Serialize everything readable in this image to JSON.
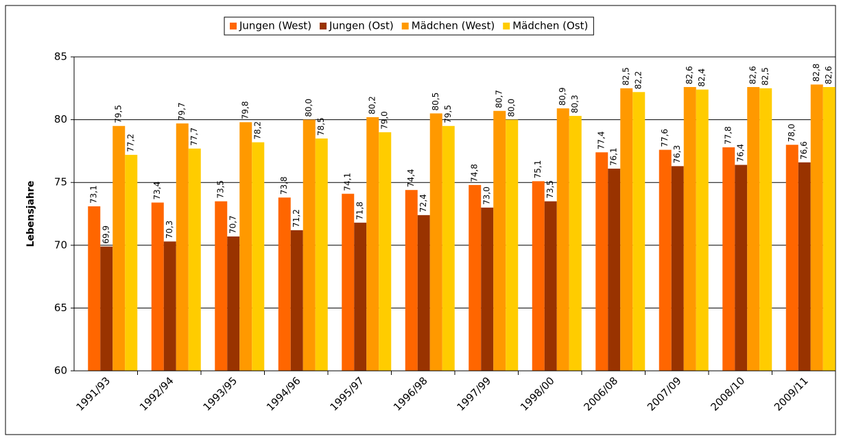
{
  "chart_data": {
    "type": "bar",
    "y_label": "Lebensjahre",
    "categories": [
      "1991/93",
      "1992/94",
      "1993/95",
      "1994/96",
      "1995/97",
      "1996/98",
      "1997/99",
      "1998/00",
      "2006/08",
      "2007/09",
      "2008/10",
      "2009/11"
    ],
    "series": [
      {
        "name": "Jungen (West)",
        "color": "#ff6600",
        "values": [
          73.1,
          73.4,
          73.5,
          73.8,
          74.1,
          74.4,
          74.8,
          75.1,
          77.4,
          77.6,
          77.8,
          78.0
        ],
        "value_labels": [
          "73,1",
          "73,4",
          "73,5",
          "73,8",
          "74,1",
          "74,4",
          "74,8",
          "75,1",
          "77,4",
          "77,6",
          "77,8",
          "78,0"
        ]
      },
      {
        "name": "Jungen (Ost)",
        "color": "#993300",
        "values": [
          69.9,
          70.3,
          70.7,
          71.2,
          71.8,
          72.4,
          73.0,
          73.5,
          76.1,
          76.3,
          76.4,
          76.6
        ],
        "value_labels": [
          "69,9",
          "70,3",
          "70,7",
          "71,2",
          "71,8",
          "72,4",
          "73,0",
          "73,5",
          "76,1",
          "76,3",
          "76,4",
          "76,6"
        ]
      },
      {
        "name": "Mädchen (West)",
        "color": "#ff9900",
        "values": [
          79.5,
          79.7,
          79.8,
          80.0,
          80.2,
          80.5,
          80.7,
          80.9,
          82.5,
          82.6,
          82.6,
          82.8
        ],
        "value_labels": [
          "79,5",
          "79,7",
          "79,8",
          "80,0",
          "80,2",
          "80,5",
          "80,7",
          "80,9",
          "82,5",
          "82,6",
          "82,6",
          "82,8"
        ]
      },
      {
        "name": "Mädchen (Ost)",
        "color": "#ffcc00",
        "values": [
          77.2,
          77.7,
          78.2,
          78.5,
          79.0,
          79.5,
          80.0,
          80.3,
          82.2,
          82.4,
          82.5,
          82.6
        ],
        "value_labels": [
          "77,2",
          "77,7",
          "78,2",
          "78,5",
          "79,0",
          "79,5",
          "80,0",
          "80,3",
          "82,2",
          "82,4",
          "82,5",
          "82,6"
        ]
      }
    ],
    "ylim": [
      60,
      85
    ],
    "yticks": [
      60,
      65,
      70,
      75,
      80,
      85
    ],
    "grid": true,
    "legend": "top"
  }
}
